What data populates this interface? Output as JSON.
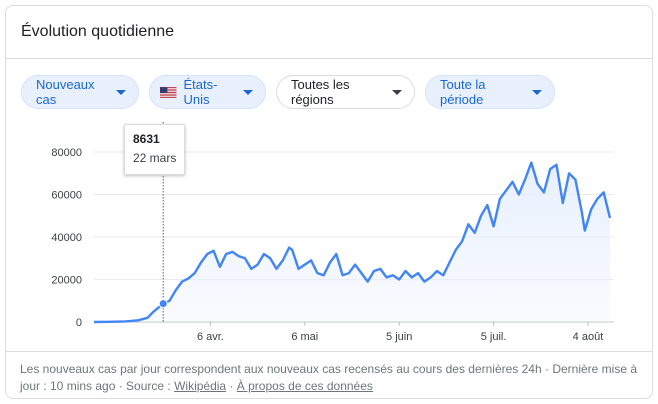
{
  "card": {
    "title": "Évolution quotidienne"
  },
  "filters": {
    "metric": "Nouveaux cas",
    "country": "États-Unis",
    "region": "Toutes les régions",
    "period": "Toute la période"
  },
  "tooltip": {
    "value": "8631",
    "date": "22 mars"
  },
  "footer": {
    "text": "Les nouveaux cas par jour correspondent aux nouveaux cas recensés au cours des dernières 24h · Dernière mise à jour : 10 mins ago · Source : ",
    "source_link": "Wikipédia",
    "separator": "·",
    "about_link": "À propos de ces données"
  },
  "colors": {
    "line": "#4285f4",
    "fill": "#e8f0fe",
    "chip_text": "#1967d2"
  },
  "icons": {
    "flag": "us-flag-icon",
    "caret": "caret-down-icon"
  },
  "chart_data": {
    "type": "area",
    "title": "",
    "xlabel": "",
    "ylabel": "",
    "ylim": [
      0,
      80000
    ],
    "yticks": [
      "0",
      "20000",
      "40000",
      "60000",
      "80000"
    ],
    "xticks": [
      {
        "label": "6 avr.",
        "date": "2020-04-06"
      },
      {
        "label": "6 mai",
        "date": "2020-05-06"
      },
      {
        "label": "5 juin",
        "date": "2020-06-05"
      },
      {
        "label": "5 juil.",
        "date": "2020-07-05"
      },
      {
        "label": "4 août",
        "date": "2020-08-04"
      }
    ],
    "grid": true,
    "highlight": {
      "date": "2020-03-22",
      "value": 8631
    },
    "series": [
      {
        "points": [
          [
            "2020-02-29",
            0
          ],
          [
            "2020-03-05",
            100
          ],
          [
            "2020-03-10",
            300
          ],
          [
            "2020-03-14",
            800
          ],
          [
            "2020-03-17",
            2000
          ],
          [
            "2020-03-19",
            5000
          ],
          [
            "2020-03-22",
            8631
          ],
          [
            "2020-03-24",
            10000
          ],
          [
            "2020-03-26",
            15000
          ],
          [
            "2020-03-28",
            19000
          ],
          [
            "2020-03-30",
            20500
          ],
          [
            "2020-04-01",
            23000
          ],
          [
            "2020-04-03",
            28000
          ],
          [
            "2020-04-05",
            32000
          ],
          [
            "2020-04-07",
            33500
          ],
          [
            "2020-04-09",
            26000
          ],
          [
            "2020-04-11",
            32000
          ],
          [
            "2020-04-13",
            33000
          ],
          [
            "2020-04-15",
            31000
          ],
          [
            "2020-04-17",
            30000
          ],
          [
            "2020-04-19",
            25000
          ],
          [
            "2020-04-21",
            27000
          ],
          [
            "2020-04-23",
            32000
          ],
          [
            "2020-04-25",
            30000
          ],
          [
            "2020-04-27",
            25000
          ],
          [
            "2020-04-29",
            29000
          ],
          [
            "2020-05-01",
            35000
          ],
          [
            "2020-05-02",
            34000
          ],
          [
            "2020-05-04",
            25000
          ],
          [
            "2020-05-06",
            27000
          ],
          [
            "2020-05-08",
            29000
          ],
          [
            "2020-05-10",
            23000
          ],
          [
            "2020-05-12",
            22000
          ],
          [
            "2020-05-14",
            28000
          ],
          [
            "2020-05-16",
            32000
          ],
          [
            "2020-05-18",
            22000
          ],
          [
            "2020-05-20",
            23000
          ],
          [
            "2020-05-22",
            27000
          ],
          [
            "2020-05-24",
            23000
          ],
          [
            "2020-05-26",
            19000
          ],
          [
            "2020-05-28",
            24000
          ],
          [
            "2020-05-30",
            25000
          ],
          [
            "2020-06-01",
            21000
          ],
          [
            "2020-06-03",
            22000
          ],
          [
            "2020-06-05",
            20000
          ],
          [
            "2020-06-07",
            24000
          ],
          [
            "2020-06-09",
            21000
          ],
          [
            "2020-06-11",
            23000
          ],
          [
            "2020-06-13",
            19000
          ],
          [
            "2020-06-15",
            21000
          ],
          [
            "2020-06-17",
            24000
          ],
          [
            "2020-06-19",
            22000
          ],
          [
            "2020-06-21",
            28000
          ],
          [
            "2020-06-23",
            34000
          ],
          [
            "2020-06-25",
            38000
          ],
          [
            "2020-06-27",
            46000
          ],
          [
            "2020-06-29",
            42000
          ],
          [
            "2020-07-01",
            50000
          ],
          [
            "2020-07-03",
            55000
          ],
          [
            "2020-07-05",
            45000
          ],
          [
            "2020-07-07",
            58000
          ],
          [
            "2020-07-09",
            62000
          ],
          [
            "2020-07-11",
            66000
          ],
          [
            "2020-07-13",
            60000
          ],
          [
            "2020-07-15",
            67000
          ],
          [
            "2020-07-17",
            75000
          ],
          [
            "2020-07-19",
            65000
          ],
          [
            "2020-07-21",
            61000
          ],
          [
            "2020-07-23",
            72000
          ],
          [
            "2020-07-25",
            74000
          ],
          [
            "2020-07-27",
            56000
          ],
          [
            "2020-07-29",
            70000
          ],
          [
            "2020-07-31",
            67000
          ],
          [
            "2020-08-02",
            52000
          ],
          [
            "2020-08-03",
            43000
          ],
          [
            "2020-08-05",
            53000
          ],
          [
            "2020-08-07",
            58000
          ],
          [
            "2020-08-09",
            61000
          ],
          [
            "2020-08-11",
            49000
          ]
        ]
      }
    ]
  }
}
